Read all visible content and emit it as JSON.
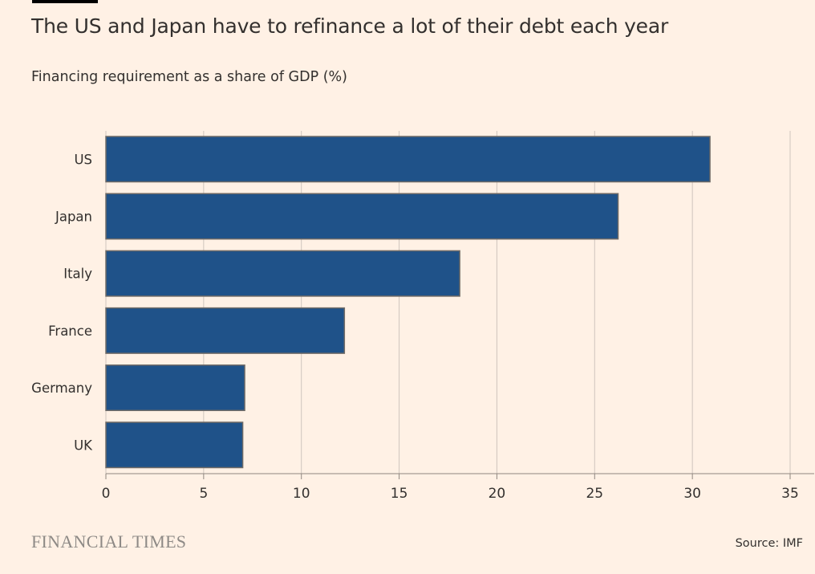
{
  "header": {
    "title": "The US and Japan have to refinance a lot of their debt each year",
    "subtitle": "Financing requirement as a share of GDP (%)"
  },
  "chart_data": {
    "type": "bar",
    "orientation": "horizontal",
    "categories": [
      "US",
      "Japan",
      "Italy",
      "France",
      "Germany",
      "UK"
    ],
    "values": [
      30.9,
      26.2,
      18.1,
      12.2,
      7.1,
      7.0
    ],
    "title": "The US and Japan have to refinance a lot of their debt each year",
    "subtitle": "Financing requirement as a share of GDP (%)",
    "xlabel": "",
    "ylabel": "",
    "xlim": [
      0,
      35
    ],
    "xticks": [
      "0",
      "5",
      "10",
      "15",
      "20",
      "25",
      "30",
      "35"
    ],
    "grid": "vertical",
    "bar_color": "#1f5289",
    "background": "#fff1e5"
  },
  "footer": {
    "logo": "FINANCIAL TIMES",
    "source": "Source: IMF"
  }
}
